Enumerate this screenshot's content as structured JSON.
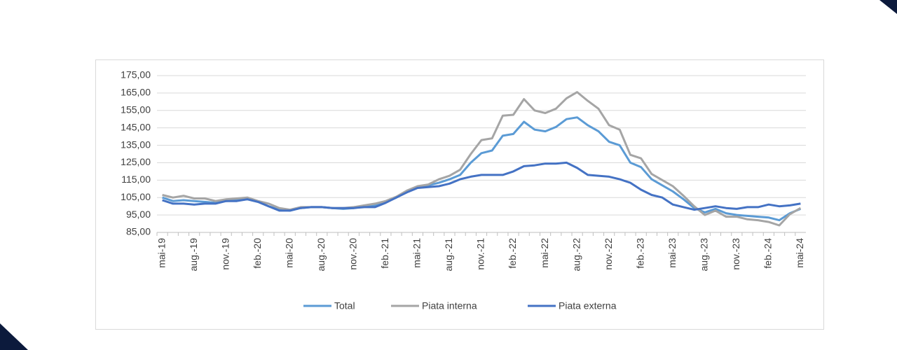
{
  "chart_data": {
    "type": "line",
    "categories": [
      "mai-19",
      null,
      null,
      "aug.-19",
      null,
      null,
      "nov.-19",
      null,
      null,
      "feb.-20",
      null,
      null,
      "mai-20",
      null,
      null,
      "aug.-20",
      null,
      null,
      "nov.-20",
      null,
      null,
      "feb.-21",
      null,
      null,
      "mai-21",
      null,
      null,
      "aug.-21",
      null,
      null,
      "nov.-21",
      null,
      null,
      "feb.-22",
      null,
      null,
      "mai-22",
      null,
      null,
      "aug.-22",
      null,
      null,
      "nov.-22",
      null,
      null,
      "feb.-23",
      null,
      null,
      "mai-23",
      null,
      null,
      "aug.-23",
      null,
      null,
      "nov.-23",
      null,
      null,
      "feb.-24",
      null,
      null,
      "mai-24"
    ],
    "series": [
      {
        "name": "Total",
        "color": "#5b9bd5",
        "values": [
          105,
          103,
          103.5,
          103,
          102.5,
          102,
          103,
          103.5,
          104,
          102.5,
          100,
          98,
          97.5,
          99,
          99.5,
          99.5,
          99,
          98.5,
          99,
          100,
          100.5,
          102.5,
          105,
          108.5,
          111,
          112,
          113.5,
          115.5,
          118,
          125,
          130.5,
          132,
          140.5,
          141.5,
          148.5,
          144,
          143,
          145.5,
          150,
          151,
          146.5,
          143,
          137,
          135,
          125,
          122.5,
          115.5,
          112,
          108.5,
          104,
          99,
          96.5,
          98.5,
          96,
          95,
          94.5,
          94,
          93.5,
          92,
          96,
          98.5
        ]
      },
      {
        "name": "Piata interna",
        "color": "#a5a5a5",
        "values": [
          106.5,
          105,
          106,
          104.5,
          104.5,
          103,
          104,
          104.5,
          105,
          103,
          101.5,
          99,
          98,
          99.5,
          99.5,
          99.5,
          99,
          99,
          99.5,
          100.5,
          101.5,
          103,
          105.5,
          109,
          111.5,
          112.5,
          115.5,
          117.5,
          121,
          130,
          138,
          139,
          152,
          152.5,
          161.5,
          155,
          153.5,
          156,
          162,
          165.5,
          160.5,
          156,
          146.5,
          144,
          129.5,
          127.5,
          118.5,
          115,
          111.5,
          106,
          100,
          95,
          97.5,
          94,
          94,
          92.5,
          92,
          91,
          89,
          95.5,
          99
        ]
      },
      {
        "name": "Piata externa",
        "color": "#4472c4",
        "values": [
          103.5,
          101.5,
          101.5,
          101,
          101.5,
          101.5,
          103,
          103,
          104,
          102.5,
          100,
          97.5,
          97.5,
          99,
          99.5,
          99.5,
          99,
          99,
          99,
          99.5,
          99.5,
          102,
          105,
          108,
          110.5,
          111,
          111.5,
          113,
          115.5,
          117,
          118,
          118,
          118,
          120,
          123,
          123.5,
          124.5,
          124.5,
          125,
          122,
          118,
          117.5,
          117,
          115.5,
          113.5,
          109.5,
          106.5,
          105,
          101,
          99.5,
          98,
          99,
          100,
          99,
          98.5,
          99.5,
          99.5,
          101,
          100,
          100.5,
          101.5
        ]
      }
    ],
    "ylim": [
      85,
      175
    ],
    "yticks": [
      {
        "value": 85,
        "label": "85,00"
      },
      {
        "value": 95,
        "label": "95,00"
      },
      {
        "value": 105,
        "label": "105,00"
      },
      {
        "value": 115,
        "label": "115,00"
      },
      {
        "value": 125,
        "label": "125,00"
      },
      {
        "value": 135,
        "label": "135,00"
      },
      {
        "value": 145,
        "label": "145,00"
      },
      {
        "value": 155,
        "label": "155,00"
      },
      {
        "value": 165,
        "label": "165,00"
      },
      {
        "value": 175,
        "label": "175,00"
      }
    ],
    "grid": true,
    "legend": "bottom"
  }
}
